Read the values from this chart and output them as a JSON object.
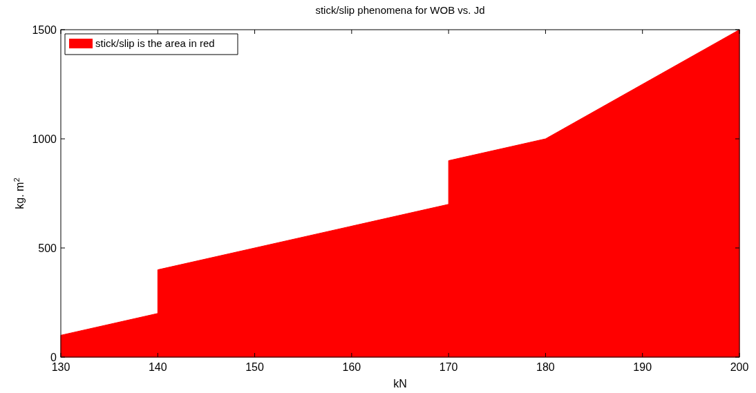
{
  "chart_data": {
    "type": "area",
    "title": "stick/slip phenomena for WOB vs. Jd",
    "xlabel": "kN",
    "ylabel": "kg. m$^{2}$",
    "x": [
      130,
      140,
      140,
      170,
      170,
      180,
      200
    ],
    "series": [
      {
        "name": "stick/slip is the area in red",
        "color": "#ff0000",
        "values": [
          100,
          200,
          400,
          700,
          900,
          1000,
          1500
        ]
      }
    ],
    "xlim": [
      130,
      200
    ],
    "xticks": [
      130,
      140,
      150,
      160,
      170,
      180,
      190,
      200
    ],
    "ylim": [
      0,
      1500
    ],
    "yticks": [
      0,
      500,
      1000,
      1500
    ],
    "grid": false,
    "legend": "top left"
  }
}
